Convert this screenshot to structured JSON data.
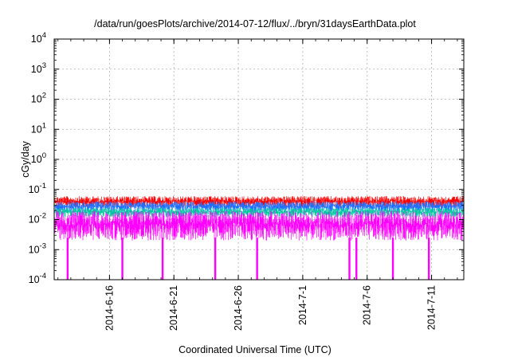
{
  "chart_data": {
    "type": "line",
    "title": "/data/run/goesPlots/archive/2014-07-12/flux/../bryn/31daysEarthData.plot",
    "xlabel": "Coordinated Universal Time (UTC)",
    "ylabel": "cGy/day",
    "yscale": "log",
    "ylim": [
      0.0001,
      10000
    ],
    "xlim": [
      "2014-06-11T17:00",
      "2014-07-13T12:00"
    ],
    "grid": true,
    "ytick_labels": [
      {
        "value": 0.0001,
        "base": "10",
        "exp": "-4"
      },
      {
        "value": 0.001,
        "base": "10",
        "exp": "-3"
      },
      {
        "value": 0.01,
        "base": "10",
        "exp": "-2"
      },
      {
        "value": 0.1,
        "base": "10",
        "exp": "-1"
      },
      {
        "value": 1,
        "base": "10",
        "exp": "0"
      },
      {
        "value": 10,
        "base": "10",
        "exp": "1"
      },
      {
        "value": 100,
        "base": "10",
        "exp": "2"
      },
      {
        "value": 1000,
        "base": "10",
        "exp": "3"
      },
      {
        "value": 10000,
        "base": "10",
        "exp": "4"
      }
    ],
    "xtick_labels": [
      "2014-6-16",
      "2014-6-21",
      "2014-6-26",
      "2014-7-1",
      "2014-7-6",
      "2014-7-11"
    ],
    "xtick_values": [
      "2014-06-16",
      "2014-06-21",
      "2014-06-26",
      "2014-07-01",
      "2014-07-06",
      "2014-07-11"
    ],
    "series": [
      {
        "color": "#ff0000",
        "low": 0.025,
        "high": 0.06
      },
      {
        "color": "#1e6fff",
        "low": 0.018,
        "high": 0.04
      },
      {
        "color": "#00c8a0",
        "low": 0.012,
        "high": 0.025
      },
      {
        "color": "#ff00ff",
        "low": 0.002,
        "high": 0.02
      }
    ],
    "dropouts": [
      {
        "date": "2014-06-12T18:00",
        "to": 0.0001
      },
      {
        "date": "2014-06-17T00:00",
        "to": 0.0001
      },
      {
        "date": "2014-06-20T03:00",
        "to": 0.0001
      },
      {
        "date": "2014-06-24T05:00",
        "to": 0.0001
      },
      {
        "date": "2014-06-27T11:00",
        "to": 0.0001
      },
      {
        "date": "2014-07-04T15:00",
        "to": 0.0001
      },
      {
        "date": "2014-07-05T04:00",
        "to": 0.0001
      },
      {
        "date": "2014-07-08T00:00",
        "to": 0.0001
      },
      {
        "date": "2014-07-10T19:00",
        "to": 0.0001
      }
    ]
  }
}
